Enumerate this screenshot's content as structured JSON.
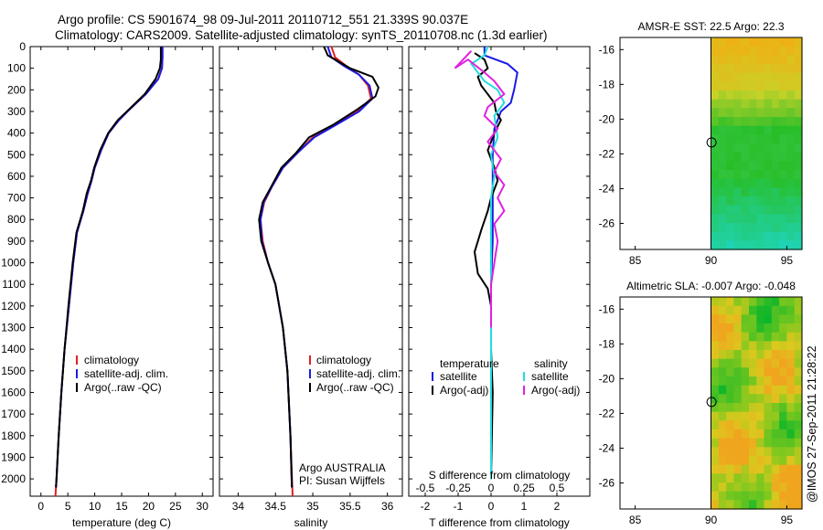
{
  "header": {
    "line1": "Argo profile: CS 5901674_98 09-Jul-2011 20110712_551 21.339S 90.037E",
    "line2": "Climatology: CARS2009. Satellite-adjusted climatology: synTS_20110708.nc (1.3d earlier)"
  },
  "credit": "@IMOS 27-Sep-2011 21:28:22",
  "colors": {
    "climatology": "#e02020",
    "satellite": "#1a1ae6",
    "argo": "#000000",
    "sat_salinity": "#22dddd",
    "argo_salinity": "#e020e0"
  },
  "chart_data": [
    {
      "id": "temperature",
      "type": "line",
      "title": "",
      "xlabel": "temperature (deg C)",
      "ylabel": "",
      "xlim": [
        -2,
        32
      ],
      "ylim": [
        2080,
        0
      ],
      "xticks": [
        0,
        5,
        10,
        15,
        20,
        25,
        30
      ],
      "yticks": [
        0,
        100,
        200,
        300,
        400,
        500,
        600,
        700,
        800,
        900,
        1000,
        1100,
        1200,
        1300,
        1400,
        1500,
        1600,
        1700,
        1800,
        1900,
        2000
      ],
      "legend": {
        "placement": "bottom-left",
        "entries": [
          "climatology",
          "satellite-adj. clim.",
          "Argo(..raw -QC)"
        ]
      },
      "series": [
        {
          "name": "climatology",
          "color": "#e02020",
          "points": [
            [
              22.6,
              0
            ],
            [
              22.6,
              50
            ],
            [
              22.5,
              100
            ],
            [
              21.8,
              150
            ],
            [
              19.5,
              220
            ],
            [
              16.5,
              290
            ],
            [
              14.5,
              340
            ],
            [
              12.6,
              400
            ],
            [
              11.2,
              480
            ],
            [
              10,
              560
            ],
            [
              9.4,
              620
            ],
            [
              8.7,
              680
            ],
            [
              7.9,
              760
            ],
            [
              6.7,
              860
            ],
            [
              6,
              1000
            ],
            [
              5.2,
              1200
            ],
            [
              4.4,
              1400
            ],
            [
              3.8,
              1600
            ],
            [
              3.3,
              1800
            ],
            [
              2.9,
              2000
            ],
            [
              2.7,
              2080
            ]
          ]
        },
        {
          "name": "satellite-adj. clim.",
          "color": "#1a1ae6",
          "points": [
            [
              22.6,
              0
            ],
            [
              22.6,
              50
            ],
            [
              22.5,
              100
            ],
            [
              21.8,
              150
            ],
            [
              19.5,
              220
            ],
            [
              16.5,
              290
            ],
            [
              14.5,
              340
            ],
            [
              12.6,
              400
            ],
            [
              11.2,
              480
            ],
            [
              10,
              560
            ],
            [
              9.4,
              620
            ],
            [
              8.7,
              680
            ],
            [
              7.9,
              760
            ],
            [
              6.7,
              860
            ],
            [
              6,
              1000
            ],
            [
              5.2,
              1200
            ],
            [
              4.4,
              1400
            ],
            [
              3.8,
              1600
            ],
            [
              3.3,
              1800
            ],
            [
              2.9,
              2000
            ],
            [
              2.8,
              2040
            ]
          ]
        },
        {
          "name": "Argo(..raw -QC)",
          "color": "#000000",
          "points": [
            [
              22.3,
              0
            ],
            [
              22.3,
              60
            ],
            [
              22.1,
              100
            ],
            [
              21.3,
              150
            ],
            [
              19.3,
              220
            ],
            [
              16.4,
              290
            ],
            [
              14.3,
              340
            ],
            [
              12.5,
              400
            ],
            [
              11,
              480
            ],
            [
              9.9,
              560
            ],
            [
              9.3,
              620
            ],
            [
              8.5,
              680
            ],
            [
              7.8,
              760
            ],
            [
              6.6,
              860
            ],
            [
              5.9,
              1000
            ],
            [
              5.1,
              1200
            ],
            [
              4.4,
              1400
            ],
            [
              3.8,
              1600
            ],
            [
              3.3,
              1800
            ],
            [
              2.9,
              2000
            ],
            [
              2.8,
              2040
            ]
          ]
        }
      ]
    },
    {
      "id": "salinity",
      "type": "line",
      "title": "",
      "xlabel": "salinity",
      "ylabel": "",
      "xlim": [
        33.75,
        36.2
      ],
      "ylim": [
        2080,
        0
      ],
      "xticks": [
        34,
        34.5,
        35,
        35.5,
        36
      ],
      "legend": {
        "placement": "bottom-right",
        "entries": [
          "climatology",
          "satellite-adj. clim.",
          "Argo(..raw -QC)"
        ]
      },
      "annotations": [
        "Argo AUSTRALIA",
        "PI: Susan Wijffels"
      ],
      "series": [
        {
          "name": "climatology",
          "color": "#e02020",
          "points": [
            [
              35.25,
              0
            ],
            [
              35.3,
              50
            ],
            [
              35.45,
              90
            ],
            [
              35.62,
              130
            ],
            [
              35.74,
              180
            ],
            [
              35.78,
              240
            ],
            [
              35.6,
              300
            ],
            [
              35.3,
              360
            ],
            [
              35.0,
              420
            ],
            [
              34.8,
              490
            ],
            [
              34.6,
              560
            ],
            [
              34.45,
              650
            ],
            [
              34.35,
              720
            ],
            [
              34.3,
              800
            ],
            [
              34.33,
              900
            ],
            [
              34.4,
              1000
            ],
            [
              34.5,
              1100
            ],
            [
              34.6,
              1300
            ],
            [
              34.66,
              1500
            ],
            [
              34.7,
              1800
            ],
            [
              34.73,
              2080
            ]
          ]
        },
        {
          "name": "satellite-adj. clim.",
          "color": "#1a1ae6",
          "points": [
            [
              35.2,
              0
            ],
            [
              35.25,
              50
            ],
            [
              35.42,
              90
            ],
            [
              35.62,
              130
            ],
            [
              35.76,
              180
            ],
            [
              35.8,
              240
            ],
            [
              35.62,
              300
            ],
            [
              35.32,
              360
            ],
            [
              35.02,
              420
            ],
            [
              34.8,
              490
            ],
            [
              34.6,
              560
            ],
            [
              34.45,
              650
            ],
            [
              34.34,
              720
            ],
            [
              34.3,
              800
            ],
            [
              34.32,
              900
            ],
            [
              34.4,
              1000
            ],
            [
              34.5,
              1100
            ],
            [
              34.6,
              1300
            ],
            [
              34.66,
              1500
            ],
            [
              34.7,
              1800
            ],
            [
              34.72,
              2040
            ]
          ]
        },
        {
          "name": "Argo(..raw -QC)",
          "color": "#000000",
          "points": [
            [
              35.15,
              0
            ],
            [
              35.2,
              40
            ],
            [
              35.5,
              100
            ],
            [
              35.8,
              140
            ],
            [
              35.88,
              190
            ],
            [
              35.84,
              230
            ],
            [
              35.6,
              290
            ],
            [
              35.28,
              360
            ],
            [
              34.95,
              420
            ],
            [
              34.78,
              490
            ],
            [
              34.58,
              560
            ],
            [
              34.44,
              650
            ],
            [
              34.33,
              720
            ],
            [
              34.28,
              800
            ],
            [
              34.31,
              900
            ],
            [
              34.4,
              1000
            ],
            [
              34.5,
              1100
            ],
            [
              34.6,
              1300
            ],
            [
              34.66,
              1500
            ],
            [
              34.7,
              1800
            ],
            [
              34.72,
              2040
            ]
          ]
        }
      ]
    },
    {
      "id": "difference",
      "type": "line",
      "title": "",
      "xlabel": "T difference from climatology",
      "x2label": "S difference from climatology",
      "ylabel": "",
      "xlim": [
        -2.5,
        3
      ],
      "ylim": [
        2080,
        0
      ],
      "xticks": [
        -2,
        -1,
        0,
        1,
        2
      ],
      "x2ticks": [
        "-0.5",
        "-0.25",
        "0",
        "0.25",
        "0.5"
      ],
      "x2tick_positions": [
        -2,
        -1,
        0,
        1,
        2
      ],
      "legend": {
        "placement": "bottom",
        "left_title": "temperature",
        "right_title": "salinity",
        "entries": [
          "satellite",
          "Argo(-adj)",
          "satellite",
          "Argo(-adj)"
        ]
      },
      "series": [
        {
          "name": "satellite",
          "color": "#1a1ae6",
          "points": [
            [
              -0.2,
              0
            ],
            [
              -0.2,
              40
            ],
            [
              0.5,
              80
            ],
            [
              0.8,
              120
            ],
            [
              0.7,
              200
            ],
            [
              0.6,
              260
            ],
            [
              0.3,
              300
            ],
            [
              0.1,
              380
            ],
            [
              0.05,
              500
            ],
            [
              0.05,
              900
            ],
            [
              0,
              1100
            ],
            [
              0,
              1500
            ],
            [
              0,
              2000
            ]
          ]
        },
        {
          "name": "Argo(-adj)",
          "color": "#000000",
          "points": [
            [
              -0.5,
              30
            ],
            [
              -0.2,
              60
            ],
            [
              -0.1,
              100
            ],
            [
              -0.4,
              140
            ],
            [
              -0.3,
              180
            ],
            [
              -0.2,
              200
            ],
            [
              0.1,
              260
            ],
            [
              0.15,
              300
            ],
            [
              0.3,
              340
            ],
            [
              0.1,
              400
            ],
            [
              -0.1,
              480
            ],
            [
              0.1,
              560
            ],
            [
              0.2,
              620
            ],
            [
              0.0,
              700
            ],
            [
              -0.1,
              760
            ],
            [
              -0.3,
              850
            ],
            [
              -0.5,
              950
            ],
            [
              -0.4,
              1050
            ],
            [
              -0.1,
              1120
            ],
            [
              0,
              1200
            ],
            [
              0,
              1400
            ],
            [
              0.05,
              1600
            ],
            [
              0,
              2000
            ]
          ]
        },
        {
          "name": "satellite",
          "color": "#22dddd",
          "points": [
            [
              -0.1,
              0
            ],
            [
              -0.2,
              40
            ],
            [
              -0.6,
              80
            ],
            [
              -0.4,
              120
            ],
            [
              -0.2,
              160
            ],
            [
              0.2,
              200
            ],
            [
              0.4,
              260
            ],
            [
              0.1,
              320
            ],
            [
              0.2,
              420
            ],
            [
              0.0,
              500
            ],
            [
              0.1,
              600
            ],
            [
              0.0,
              700
            ],
            [
              0,
              900
            ],
            [
              0,
              1200
            ],
            [
              0,
              1600
            ],
            [
              0,
              2000
            ]
          ]
        },
        {
          "name": "Argo(-adj)",
          "color": "#e020e0",
          "points": [
            [
              -0.6,
              20
            ],
            [
              -1.1,
              100
            ],
            [
              -0.7,
              60
            ],
            [
              -0.2,
              120
            ],
            [
              0.1,
              160
            ],
            [
              0.4,
              220
            ],
            [
              -0.1,
              280
            ],
            [
              -0.2,
              320
            ],
            [
              0.2,
              380
            ],
            [
              -0.1,
              440
            ],
            [
              0.3,
              520
            ],
            [
              0.1,
              580
            ],
            [
              0.4,
              640
            ],
            [
              0.2,
              700
            ],
            [
              0.4,
              760
            ],
            [
              0.1,
              820
            ],
            [
              0.2,
              900
            ],
            [
              0.1,
              1000
            ],
            [
              0,
              1100
            ],
            [
              0,
              1300
            ]
          ]
        }
      ]
    },
    {
      "id": "sst_map",
      "type": "heatmap",
      "title": "AMSR-E SST: 22.5  Argo: 22.3",
      "xlim": [
        84,
        96
      ],
      "ylim": [
        -27.5,
        -15.3
      ],
      "xticks": [
        85,
        90,
        95
      ],
      "yticks": [
        -16,
        -18,
        -20,
        -22,
        -24,
        -26
      ],
      "argo_position": [
        90.037,
        -21.339
      ],
      "data_extent_x": [
        90,
        96
      ]
    },
    {
      "id": "sla_map",
      "type": "heatmap",
      "title": "Altimetric SLA: -0.007  Argo: -0.048",
      "xlim": [
        84,
        96
      ],
      "ylim": [
        -27.5,
        -15.3
      ],
      "xticks": [
        85,
        90,
        95
      ],
      "yticks": [
        -16,
        -18,
        -20,
        -22,
        -24,
        -26
      ],
      "argo_position": [
        90.037,
        -21.339
      ],
      "data_extent_x": [
        90,
        96
      ]
    }
  ]
}
